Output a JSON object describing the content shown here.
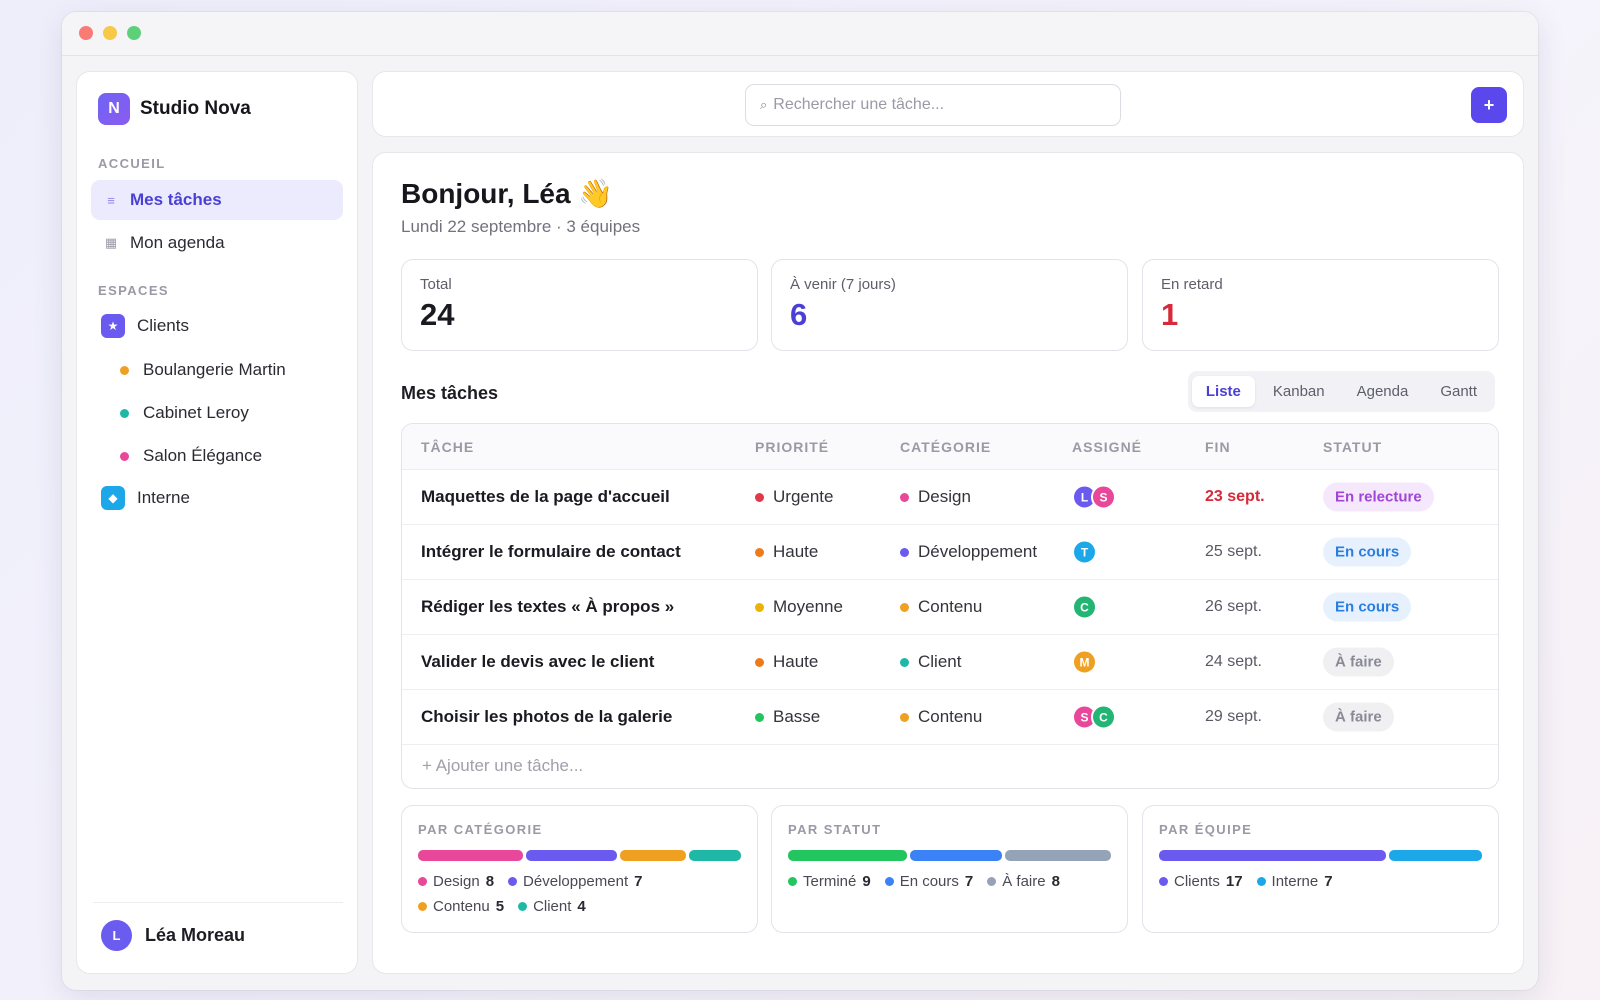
{
  "app": {
    "name": "Studio Nova",
    "logo_letter": "N"
  },
  "sidebar": {
    "section_home": "ACCUEIL",
    "home_items": [
      {
        "label": "Mes tâches",
        "icon": "list-icon",
        "active": true
      },
      {
        "label": "Mon agenda",
        "icon": "calendar-icon",
        "active": false
      }
    ],
    "section_spaces": "ESPACES",
    "spaces": [
      {
        "label": "Clients",
        "icon": "star-icon",
        "glyph": "★",
        "color": "#6a5af0"
      },
      {
        "label": "Interne",
        "icon": "diamond-icon",
        "glyph": "◆",
        "color": "#1ca8e8"
      }
    ],
    "client_children": [
      {
        "label": "Boulangerie Martin",
        "color": "#f0a020"
      },
      {
        "label": "Cabinet Leroy",
        "color": "#1fb8a6"
      },
      {
        "label": "Salon Élégance",
        "color": "#e8479a"
      }
    ],
    "user": {
      "initial": "L",
      "name": "Léa Moreau"
    }
  },
  "topbar": {
    "search_placeholder": "Rechercher une tâche...",
    "search_glyph": "⌕",
    "add_label": "+"
  },
  "main": {
    "greeting": "Bonjour, Léa 👋",
    "subline": "Lundi 22 septembre · 3 équipes",
    "stats": [
      {
        "label": "Total",
        "value": "24",
        "color": "#1a1a21"
      },
      {
        "label": "À venir (7 jours)",
        "value": "6",
        "color": "#4b3fd6"
      },
      {
        "label": "En retard",
        "value": "1",
        "color": "#d62a3a"
      }
    ],
    "tasks_heading": "Mes tâches",
    "view_tabs": [
      "Liste",
      "Kanban",
      "Agenda",
      "Gantt"
    ],
    "active_view": "Liste",
    "columns": [
      "TÂCHE",
      "PRIORITÉ",
      "CATÉGORIE",
      "ASSIGNÉ",
      "FIN",
      "STATUT"
    ],
    "tasks": [
      {
        "title": "Maquettes de la page d'accueil",
        "priority": "Urgente",
        "priority_color": "#e03a4a",
        "category": "Design",
        "category_color": "#e8479a",
        "assignees": [
          {
            "initial": "L",
            "color": "#6a5af0"
          },
          {
            "initial": "S",
            "color": "#e8479a"
          }
        ],
        "due": "23 sept.",
        "late": true,
        "status": "En relecture",
        "status_fg": "#a045d8",
        "status_bg": "#f5e8fc"
      },
      {
        "title": "Intégrer le formulaire de contact",
        "priority": "Haute",
        "priority_color": "#f07a1a",
        "category": "Développement",
        "category_color": "#6a5af0",
        "assignees": [
          {
            "initial": "T",
            "color": "#1ca8e8"
          }
        ],
        "due": "25 sept.",
        "late": false,
        "status": "En cours",
        "status_fg": "#2a7ee0",
        "status_bg": "#e6f1fd"
      },
      {
        "title": "Rédiger les textes « À propos »",
        "priority": "Moyenne",
        "priority_color": "#eab308",
        "category": "Contenu",
        "category_color": "#f0a020",
        "assignees": [
          {
            "initial": "C",
            "color": "#22b573"
          }
        ],
        "due": "26 sept.",
        "late": false,
        "status": "En cours",
        "status_fg": "#2a7ee0",
        "status_bg": "#e6f1fd"
      },
      {
        "title": "Valider le devis avec le client",
        "priority": "Haute",
        "priority_color": "#f07a1a",
        "category": "Client",
        "category_color": "#1fb8a6",
        "assignees": [
          {
            "initial": "M",
            "color": "#f0a020"
          }
        ],
        "due": "24 sept.",
        "late": false,
        "status": "À faire",
        "status_fg": "#8a8a96",
        "status_bg": "#f0f0f3"
      },
      {
        "title": "Choisir les photos de la galerie",
        "priority": "Basse",
        "priority_color": "#22c55e",
        "category": "Contenu",
        "category_color": "#f0a020",
        "assignees": [
          {
            "initial": "S",
            "color": "#e8479a"
          },
          {
            "initial": "C",
            "color": "#22b573"
          }
        ],
        "due": "29 sept.",
        "late": false,
        "status": "À faire",
        "status_fg": "#8a8a96",
        "status_bg": "#f0f0f3"
      }
    ],
    "add_task": "+ Ajouter une tâche..."
  },
  "summaries": [
    {
      "title": "PAR CATÉGORIE",
      "items": [
        {
          "label": "Design",
          "count": 8,
          "color": "#e8479a"
        },
        {
          "label": "Développement",
          "count": 7,
          "color": "#6a5af0"
        },
        {
          "label": "Contenu",
          "count": 5,
          "color": "#f0a020"
        },
        {
          "label": "Client",
          "count": 4,
          "color": "#1fb8a6"
        }
      ]
    },
    {
      "title": "PAR STATUT",
      "items": [
        {
          "label": "Terminé",
          "count": 9,
          "color": "#22c55e"
        },
        {
          "label": "En cours",
          "count": 7,
          "color": "#3b82f6"
        },
        {
          "label": "À faire",
          "count": 8,
          "color": "#94a3b8"
        }
      ]
    },
    {
      "title": "PAR ÉQUIPE",
      "items": [
        {
          "label": "Clients",
          "count": 17,
          "color": "#6a5af0"
        },
        {
          "label": "Interne",
          "count": 7,
          "color": "#1ca8e8"
        }
      ]
    }
  ]
}
